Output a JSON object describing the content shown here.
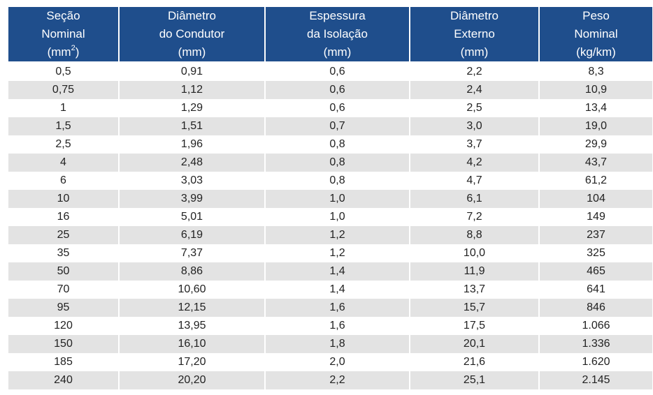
{
  "table": {
    "headers": [
      {
        "lines": [
          "Seção",
          "Nominal"
        ],
        "unit_prefix": "(mm",
        "unit_sup": "2",
        "unit_suffix": ")"
      },
      {
        "lines": [
          "Diâmetro",
          "do Condutor"
        ],
        "unit_prefix": "(mm)",
        "unit_sup": "",
        "unit_suffix": ""
      },
      {
        "lines": [
          "Espessura",
          "da Isolação"
        ],
        "unit_prefix": "(mm)",
        "unit_sup": "",
        "unit_suffix": ""
      },
      {
        "lines": [
          "Diâmetro",
          "Externo"
        ],
        "unit_prefix": "(mm)",
        "unit_sup": "",
        "unit_suffix": ""
      },
      {
        "lines": [
          "Peso",
          "Nominal"
        ],
        "unit_prefix": "(kg/km)",
        "unit_sup": "",
        "unit_suffix": ""
      }
    ],
    "rows": [
      [
        "0,5",
        "0,91",
        "0,6",
        "2,2",
        "8,3"
      ],
      [
        "0,75",
        "1,12",
        "0,6",
        "2,4",
        "10,9"
      ],
      [
        "1",
        "1,29",
        "0,6",
        "2,5",
        "13,4"
      ],
      [
        "1,5",
        "1,51",
        "0,7",
        "3,0",
        "19,0"
      ],
      [
        "2,5",
        "1,96",
        "0,8",
        "3,7",
        "29,9"
      ],
      [
        "4",
        "2,48",
        "0,8",
        "4,2",
        "43,7"
      ],
      [
        "6",
        "3,03",
        "0,8",
        "4,7",
        "61,2"
      ],
      [
        "10",
        "3,99",
        "1,0",
        "6,1",
        "104"
      ],
      [
        "16",
        "5,01",
        "1,0",
        "7,2",
        "149"
      ],
      [
        "25",
        "6,19",
        "1,2",
        "8,8",
        "237"
      ],
      [
        "35",
        "7,37",
        "1,2",
        "10,0",
        "325"
      ],
      [
        "50",
        "8,86",
        "1,4",
        "11,9",
        "465"
      ],
      [
        "70",
        "10,60",
        "1,4",
        "13,7",
        "641"
      ],
      [
        "95",
        "12,15",
        "1,6",
        "15,7",
        "846"
      ],
      [
        "120",
        "13,95",
        "1,6",
        "17,5",
        "1.066"
      ],
      [
        "150",
        "16,10",
        "1,8",
        "20,1",
        "1.336"
      ],
      [
        "185",
        "17,20",
        "2,0",
        "21,6",
        "1.620"
      ],
      [
        "240",
        "20,20",
        "2,2",
        "25,1",
        "2.145"
      ]
    ]
  },
  "colors": {
    "header_bg": "#1f4e8c",
    "header_text": "#ffffff",
    "row_alt_bg": "#e3e3e3",
    "row_bg": "#ffffff"
  }
}
